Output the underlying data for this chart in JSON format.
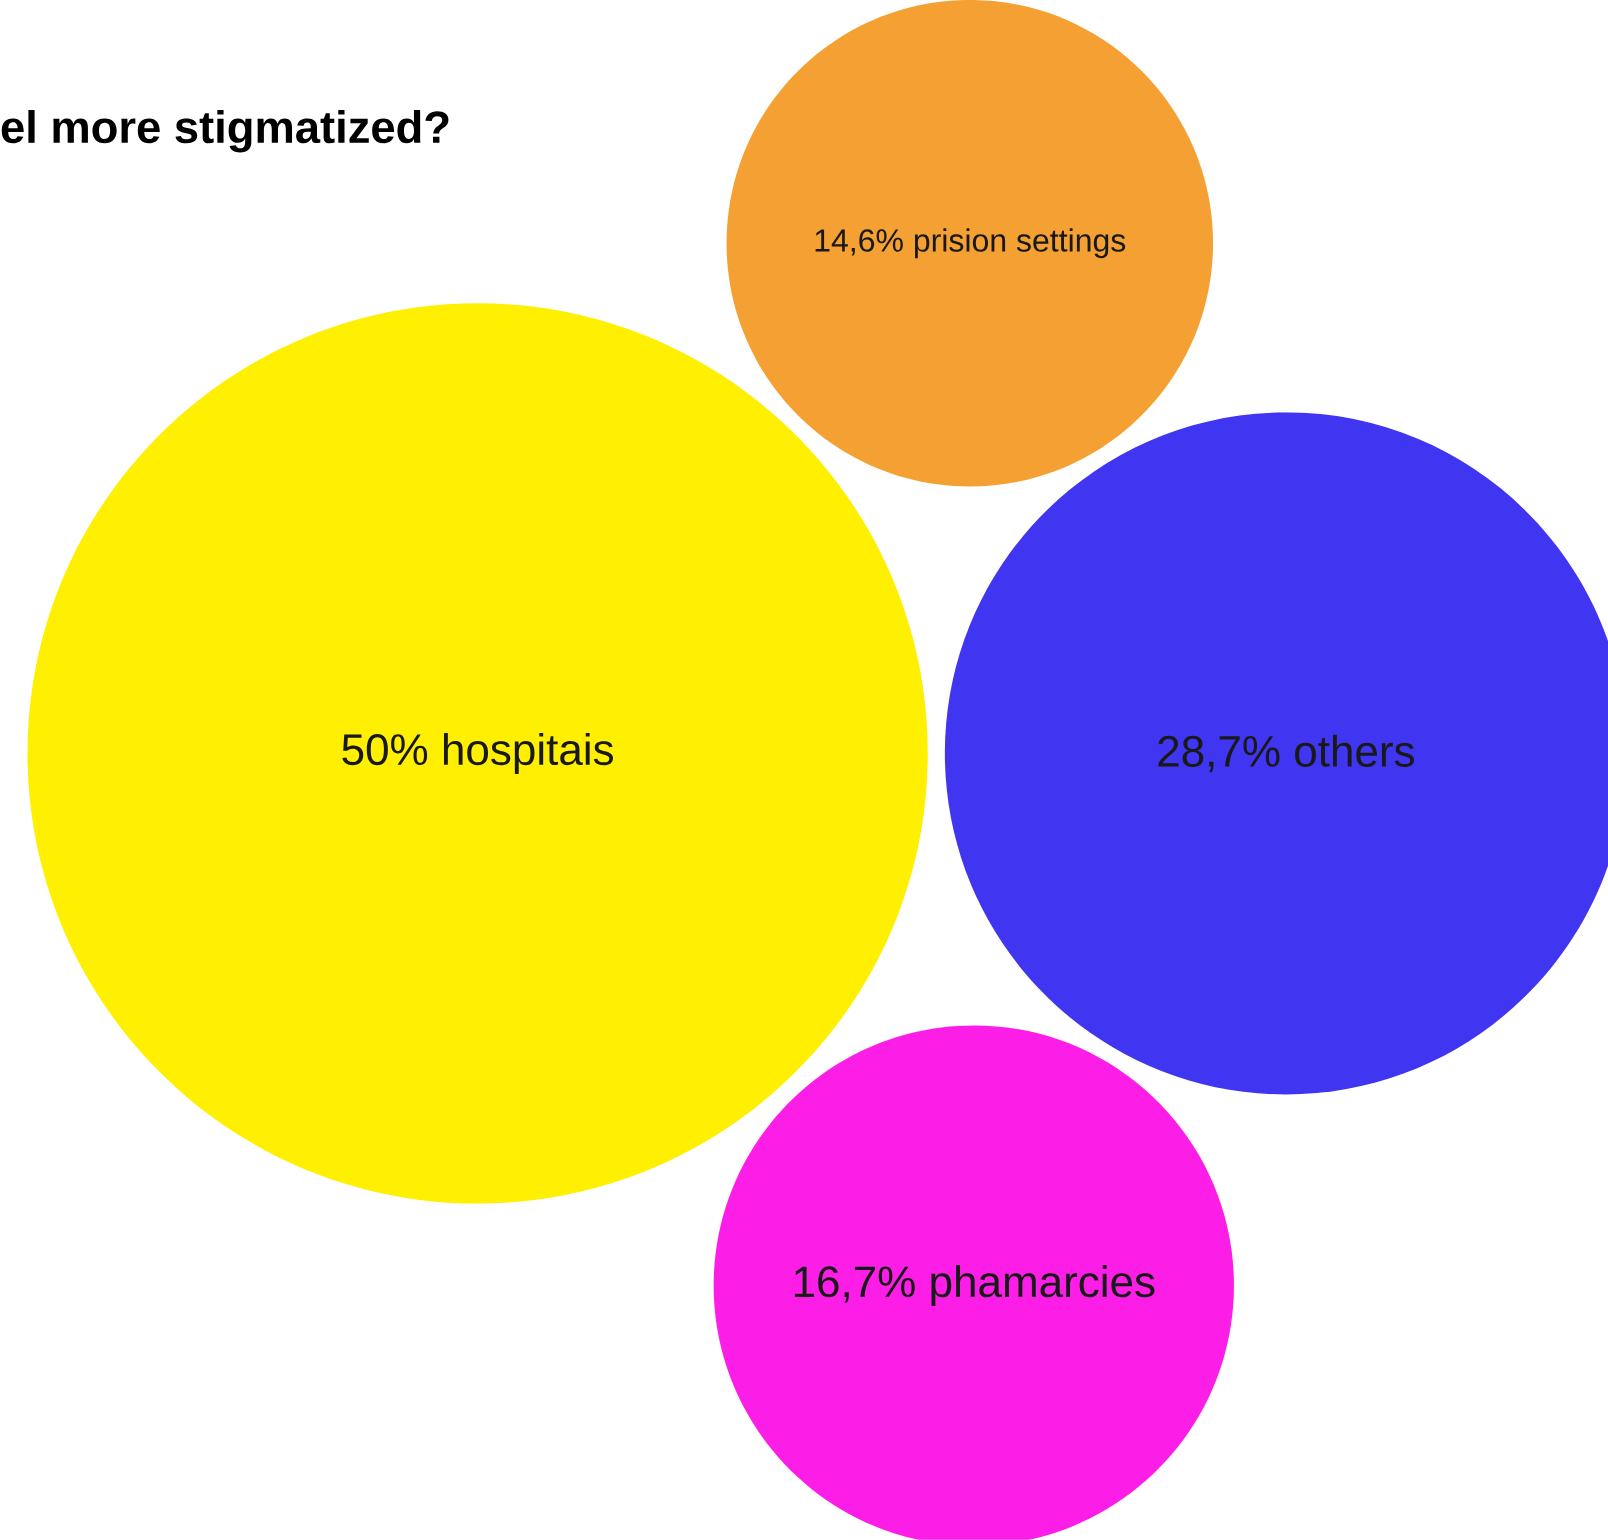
{
  "chart_data": {
    "type": "other",
    "title": "el more stigmatized?",
    "categories": [
      "hospitais",
      "others",
      "phamarcies",
      "prision settings"
    ],
    "values": [
      50,
      28.7,
      16.7,
      14.6
    ],
    "value_labels": [
      "50%",
      "28,7%",
      "16,7%",
      "14,6%"
    ],
    "colors": [
      "#ffef00",
      "#4035f0",
      "#fc1ee6",
      "#f4a033"
    ]
  }
}
